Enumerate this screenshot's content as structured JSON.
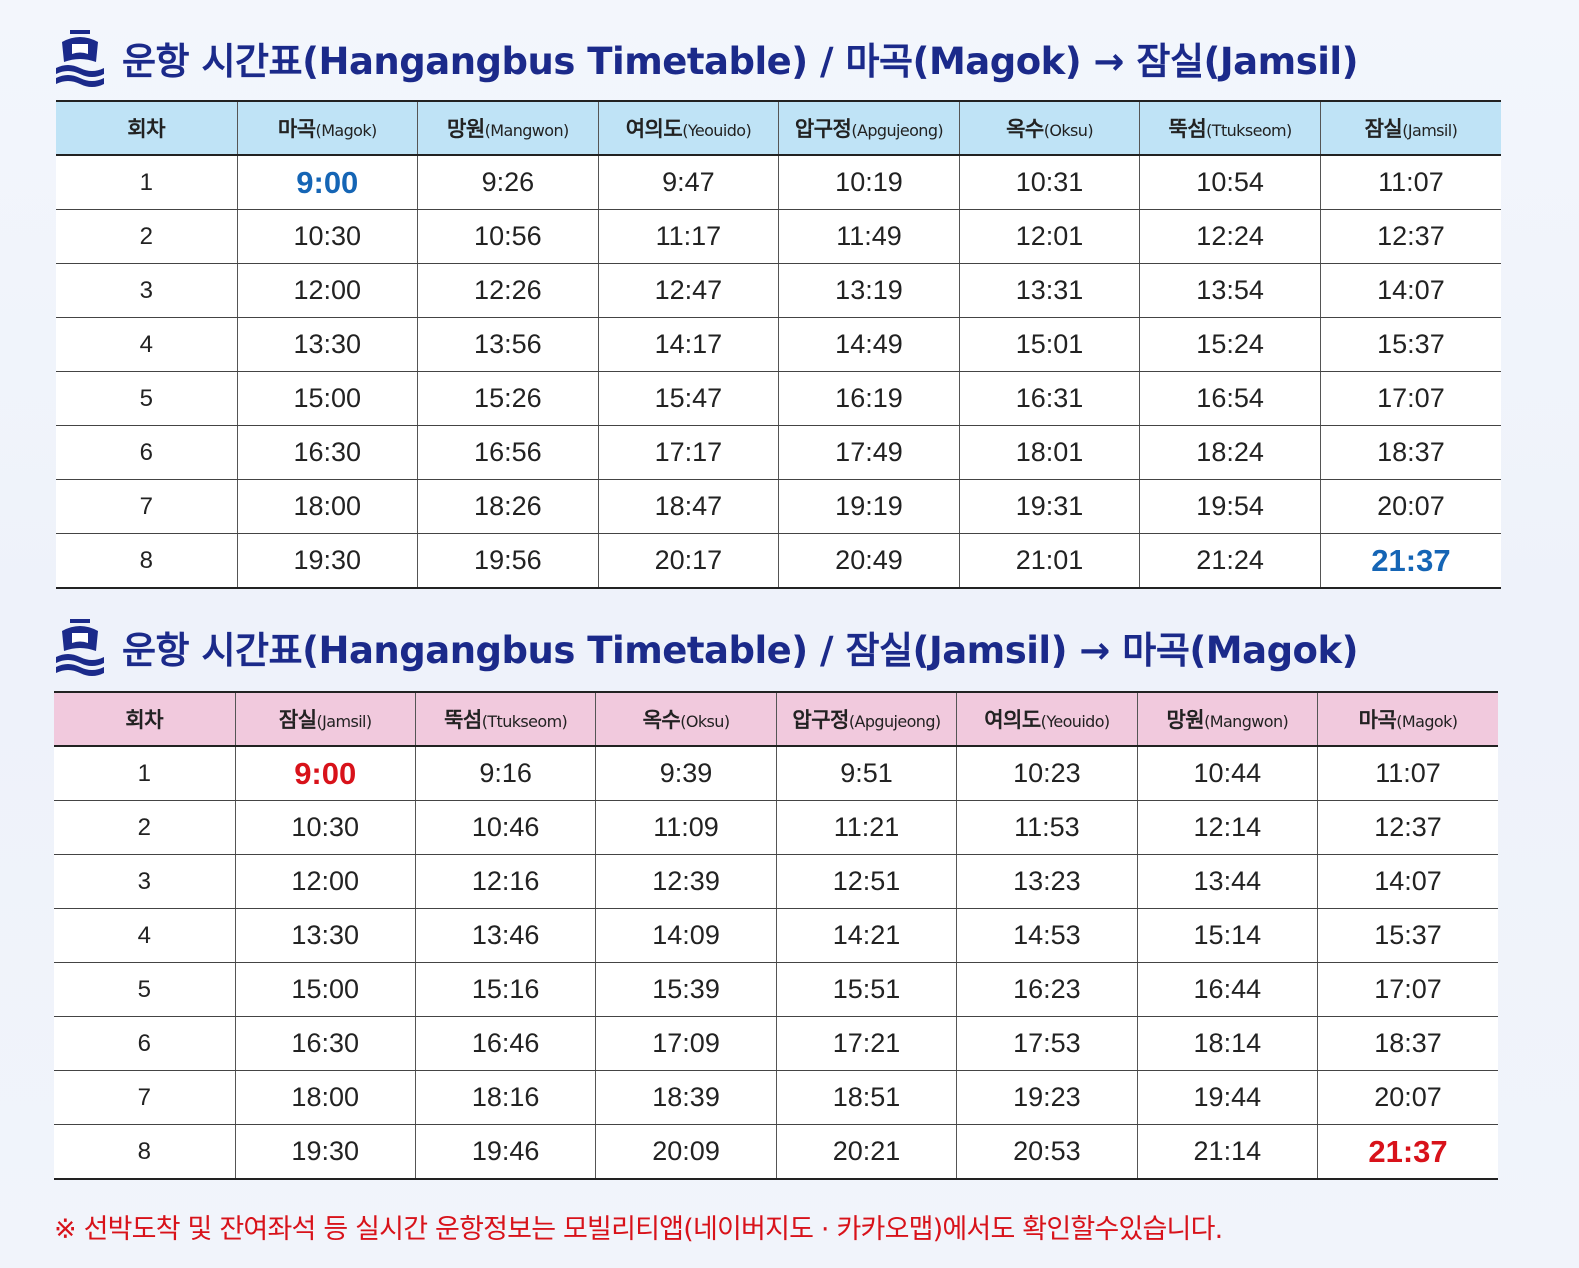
{
  "colors": {
    "title": "#1b2a8a",
    "header1_bg": "#bfe3f6",
    "header2_bg": "#f1c9dd",
    "highlight_blue": "#1565b5",
    "highlight_red": "#d8121a"
  },
  "timetable1": {
    "title": "운항 시간표(Hangangbus Timetable) / 마곡(Magok) → 잠실(Jamsil)",
    "icon": "boat-icon",
    "headers": [
      {
        "ko": "회차",
        "en": ""
      },
      {
        "ko": "마곡",
        "en": "(Magok)"
      },
      {
        "ko": "망원",
        "en": "(Mangwon)"
      },
      {
        "ko": "여의도",
        "en": "(Yeouido)"
      },
      {
        "ko": "압구정",
        "en": "(Apgujeong)"
      },
      {
        "ko": "옥수",
        "en": "(Oksu)"
      },
      {
        "ko": "뚝섬",
        "en": "(Ttukseom)"
      },
      {
        "ko": "잠실",
        "en": "(Jamsil)"
      }
    ],
    "rows": [
      [
        "1",
        "9:00",
        "9:26",
        "9:47",
        "10:19",
        "10:31",
        "10:54",
        "11:07"
      ],
      [
        "2",
        "10:30",
        "10:56",
        "11:17",
        "11:49",
        "12:01",
        "12:24",
        "12:37"
      ],
      [
        "3",
        "12:00",
        "12:26",
        "12:47",
        "13:19",
        "13:31",
        "13:54",
        "14:07"
      ],
      [
        "4",
        "13:30",
        "13:56",
        "14:17",
        "14:49",
        "15:01",
        "15:24",
        "15:37"
      ],
      [
        "5",
        "15:00",
        "15:26",
        "15:47",
        "16:19",
        "16:31",
        "16:54",
        "17:07"
      ],
      [
        "6",
        "16:30",
        "16:56",
        "17:17",
        "17:49",
        "18:01",
        "18:24",
        "18:37"
      ],
      [
        "7",
        "18:00",
        "18:26",
        "18:47",
        "19:19",
        "19:31",
        "19:54",
        "20:07"
      ],
      [
        "8",
        "19:30",
        "19:56",
        "20:17",
        "20:49",
        "21:01",
        "21:24",
        "21:37"
      ]
    ]
  },
  "timetable2": {
    "title": "운항 시간표(Hangangbus Timetable) / 잠실(Jamsil) → 마곡(Magok)",
    "icon": "boat-icon",
    "headers": [
      {
        "ko": "회차",
        "en": ""
      },
      {
        "ko": "잠실",
        "en": "(Jamsil)"
      },
      {
        "ko": "뚝섬",
        "en": "(Ttukseom)"
      },
      {
        "ko": "옥수",
        "en": "(Oksu)"
      },
      {
        "ko": "압구정",
        "en": "(Apgujeong)"
      },
      {
        "ko": "여의도",
        "en": "(Yeouido)"
      },
      {
        "ko": "망원",
        "en": "(Mangwon)"
      },
      {
        "ko": "마곡",
        "en": "(Magok)"
      }
    ],
    "rows": [
      [
        "1",
        "9:00",
        "9:16",
        "9:39",
        "9:51",
        "10:23",
        "10:44",
        "11:07"
      ],
      [
        "2",
        "10:30",
        "10:46",
        "11:09",
        "11:21",
        "11:53",
        "12:14",
        "12:37"
      ],
      [
        "3",
        "12:00",
        "12:16",
        "12:39",
        "12:51",
        "13:23",
        "13:44",
        "14:07"
      ],
      [
        "4",
        "13:30",
        "13:46",
        "14:09",
        "14:21",
        "14:53",
        "15:14",
        "15:37"
      ],
      [
        "5",
        "15:00",
        "15:16",
        "15:39",
        "15:51",
        "16:23",
        "16:44",
        "17:07"
      ],
      [
        "6",
        "16:30",
        "16:46",
        "17:09",
        "17:21",
        "17:53",
        "18:14",
        "18:37"
      ],
      [
        "7",
        "18:00",
        "18:16",
        "18:39",
        "18:51",
        "19:23",
        "19:44",
        "20:07"
      ],
      [
        "8",
        "19:30",
        "19:46",
        "20:09",
        "20:21",
        "20:53",
        "21:14",
        "21:37"
      ]
    ]
  },
  "note": "※ 선박도착 및 잔여좌석 등 실시간 운항정보는 모빌리티앱(네이버지도 · 카카오맵)에서도 확인할수있습니다."
}
